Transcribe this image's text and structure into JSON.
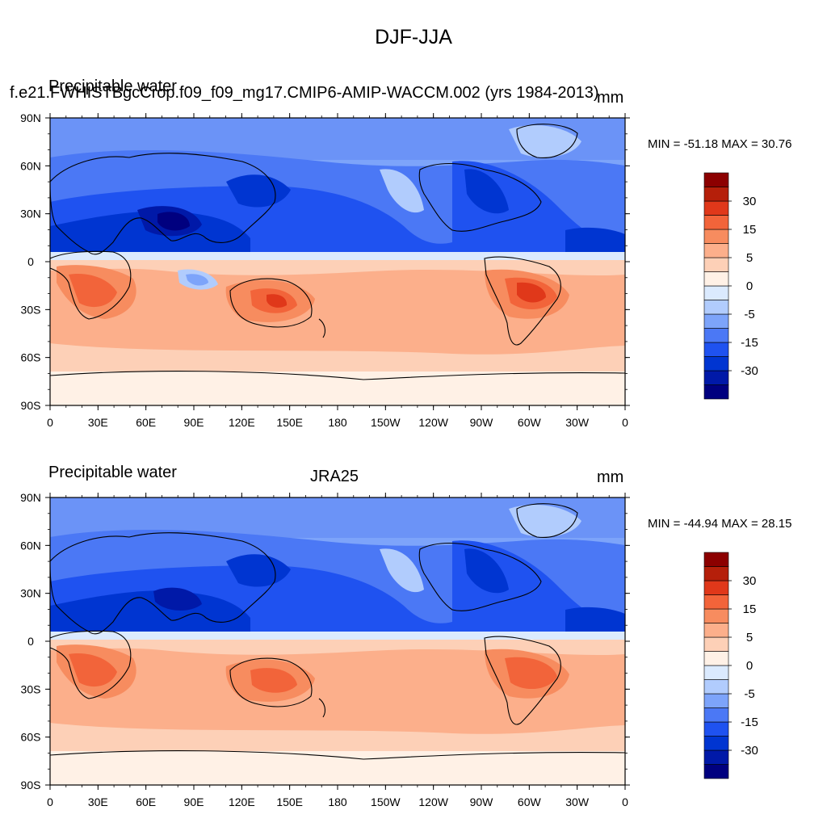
{
  "title": "DJF-JJA",
  "colors": {
    "levels": [
      "#00007f",
      "#0019a8",
      "#0035d1",
      "#1f52f0",
      "#4b78f5",
      "#7da4fa",
      "#b1ccfd",
      "#dbeafe",
      "#fff1e6",
      "#fdd0b7",
      "#fcaf8b",
      "#f78c5f",
      "#f2643a",
      "#e0381a",
      "#b51f0a",
      "#8c0000"
    ]
  },
  "panels": [
    {
      "left_title": "Precipitable water",
      "overlay_title": "f.e21.FWHISTBgcCrop.f09_f09_mg17.CMIP6-AMIP-WACCM.002 (yrs 1984-2013)",
      "center_title": "",
      "units": "mm",
      "stats": "MIN = -51.18 MAX =  30.76",
      "colorbar_labels": [
        "30",
        "15",
        "5",
        "0",
        "-5",
        "-15",
        "-30"
      ]
    },
    {
      "left_title": "Precipitable water",
      "overlay_title": "",
      "center_title": "JRA25",
      "units": "mm",
      "stats": "MIN = -44.94 MAX =  28.15",
      "colorbar_labels": [
        "30",
        "15",
        "5",
        "0",
        "-5",
        "-15",
        "-30"
      ]
    }
  ],
  "axes": {
    "lat_labels": [
      "90N",
      "60N",
      "30N",
      "0",
      "30S",
      "60S",
      "90S"
    ],
    "lon_labels": [
      "0",
      "30E",
      "60E",
      "90E",
      "120E",
      "150E",
      "180",
      "150W",
      "120W",
      "90W",
      "60W",
      "30W",
      "0"
    ]
  }
}
